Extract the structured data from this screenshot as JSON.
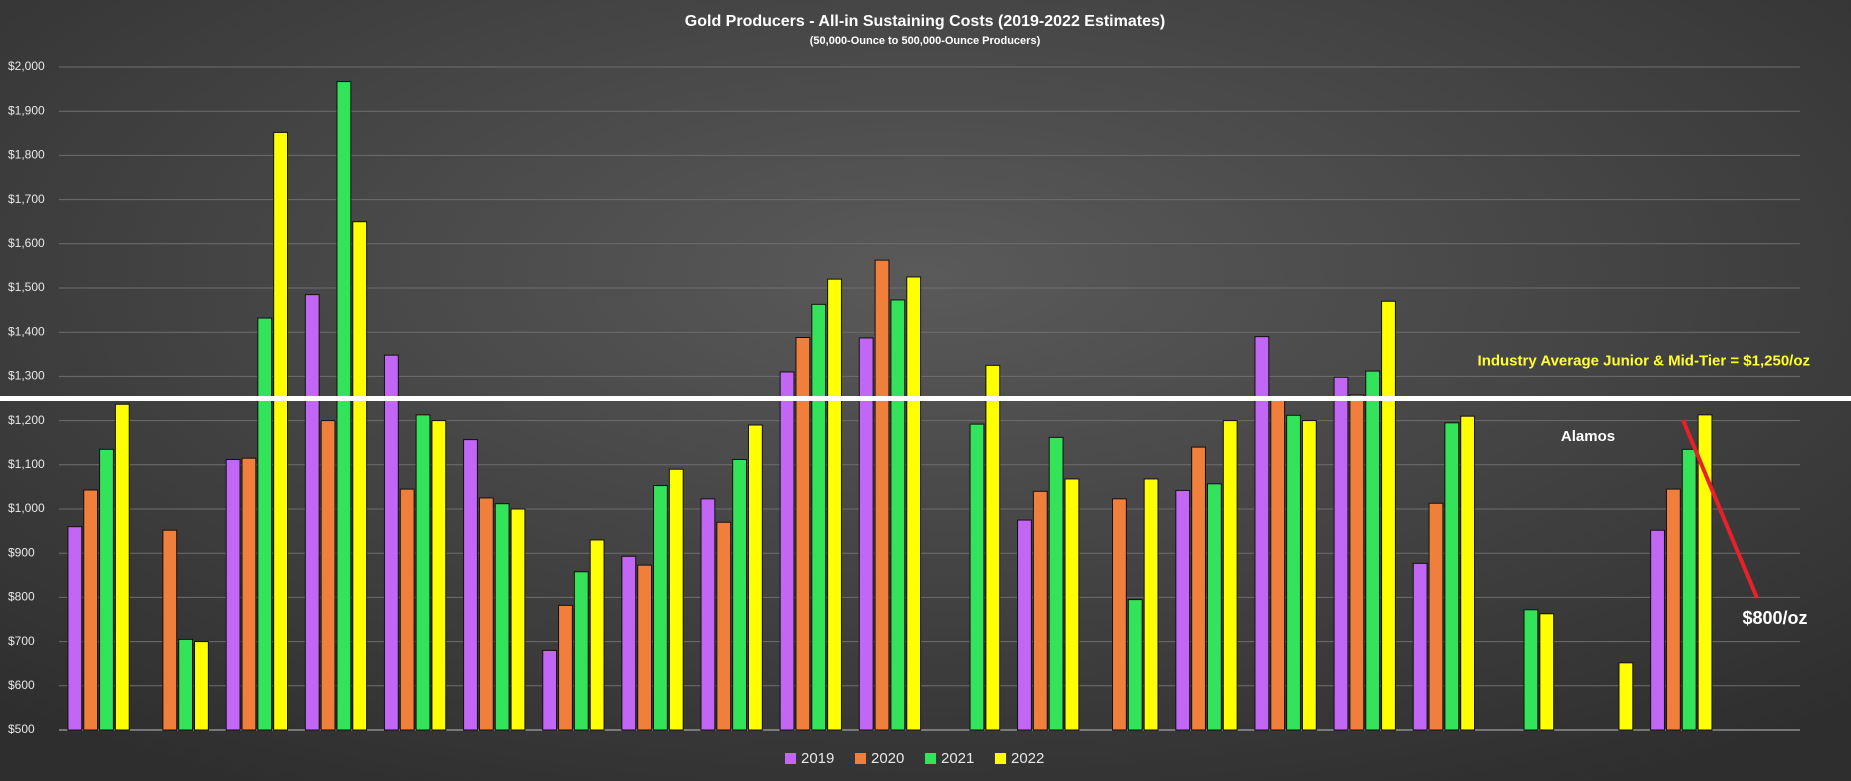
{
  "chart_data": {
    "type": "bar",
    "title": "Gold Producers - All-in Sustaining Costs (2019-2022 Estimates)",
    "subtitle": "(50,000-Ounce to 500,000-Ounce Producers)",
    "categories": [
      null,
      null,
      null,
      null,
      null,
      null,
      null,
      null,
      null,
      null,
      null,
      null,
      null,
      null,
      null,
      null,
      null,
      null,
      null,
      null,
      null,
      null
    ],
    "series": [
      {
        "name": "2019",
        "color": "#c266f5",
        "values": [
          960,
          null,
          1112,
          1485,
          1348,
          1157,
          680,
          893,
          1023,
          1310,
          1387,
          null,
          975,
          null,
          1042,
          1390,
          1298,
          877,
          null,
          null,
          952,
          null
        ]
      },
      {
        "name": "2020",
        "color": "#f07f3c",
        "values": [
          1043,
          952,
          1115,
          1200,
          1045,
          1025,
          782,
          873,
          970,
          1388,
          1563,
          null,
          1040,
          1023,
          1140,
          1250,
          1258,
          1013,
          null,
          null,
          1045,
          null
        ]
      },
      {
        "name": "2021",
        "color": "#33e35a",
        "values": [
          1135,
          705,
          1432,
          1967,
          1213,
          1012,
          858,
          1053,
          1112,
          1463,
          1473,
          1192,
          1162,
          795,
          1057,
          1212,
          1312,
          1195,
          772,
          null,
          1135,
          null
        ]
      },
      {
        "name": "2022",
        "color": "#ffff00",
        "values": [
          1237,
          700,
          1852,
          1650,
          1200,
          1000,
          930,
          1090,
          1190,
          1520,
          1525,
          1325,
          1068,
          1068,
          1200,
          1200,
          1470,
          1210,
          763,
          652,
          1213,
          null
        ]
      }
    ],
    "ylim": [
      500,
      2000
    ],
    "yticks": [
      {
        "value": 500,
        "label": "$500"
      },
      {
        "value": 600,
        "label": "$600"
      },
      {
        "value": 700,
        "label": "$700"
      },
      {
        "value": 800,
        "label": "$800"
      },
      {
        "value": 900,
        "label": "$900"
      },
      {
        "value": 1000,
        "label": "$1,000"
      },
      {
        "value": 1100,
        "label": "$1,100"
      },
      {
        "value": 1200,
        "label": "$1,200"
      },
      {
        "value": 1300,
        "label": "$1,300"
      },
      {
        "value": 1400,
        "label": "$1,400"
      },
      {
        "value": 1500,
        "label": "$1,500"
      },
      {
        "value": 1600,
        "label": "$1,600"
      },
      {
        "value": 1700,
        "label": "$1,700"
      },
      {
        "value": 1800,
        "label": "$1,800"
      },
      {
        "value": 1900,
        "label": "$1,900"
      },
      {
        "value": 2000,
        "label": "$2,000"
      }
    ],
    "grid": true,
    "legend": "bottom",
    "reference_line": {
      "value": 1250,
      "label": "Industry Average Junior & Mid-Tier = $1,250/oz"
    },
    "annotations": [
      "Alamos",
      "$800/oz"
    ]
  }
}
